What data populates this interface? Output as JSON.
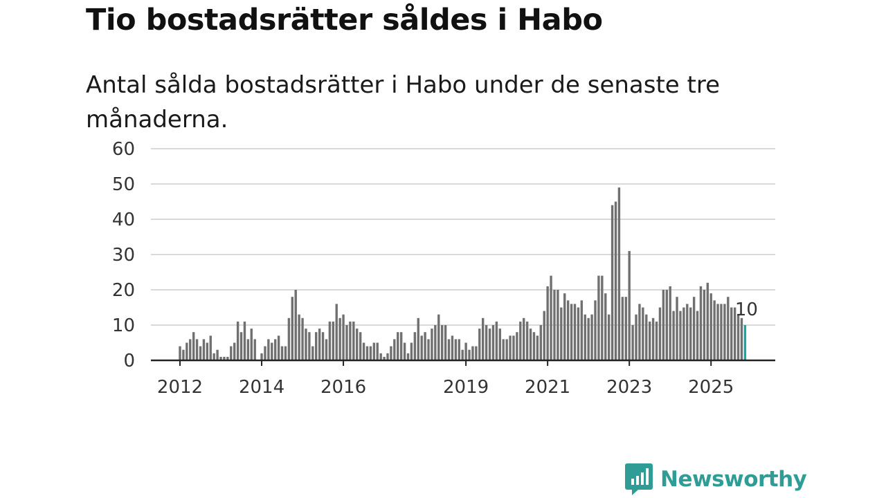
{
  "title": "Tio bostadsrätter såldes i Habo",
  "subtitle": "Antal sålda bostadsrätter i Habo under de senaste tre månaderna.",
  "brand": {
    "name": "Newsworthy",
    "icon": "newsworthy-logo-icon",
    "color": "#2f9c95"
  },
  "colors": {
    "bar": "#707070",
    "highlight": "#1fa5a0",
    "grid": "#d9d9d9",
    "axis": "#222222"
  },
  "chart_data": {
    "type": "bar",
    "title": "Tio bostadsrätter såldes i Habo",
    "xlabel": "",
    "ylabel": "",
    "ylim": [
      0,
      60
    ],
    "yticks": [
      0,
      10,
      20,
      30,
      40,
      50,
      60
    ],
    "xticks": [
      {
        "label": "2012",
        "index": 0
      },
      {
        "label": "2014",
        "index": 24
      },
      {
        "label": "2016",
        "index": 48
      },
      {
        "label": "2019",
        "index": 84
      },
      {
        "label": "2021",
        "index": 108
      },
      {
        "label": "2023",
        "index": 132
      },
      {
        "label": "2025",
        "index": 156
      }
    ],
    "start": "2012-01",
    "end": "2025-12",
    "values": [
      4,
      3,
      5,
      6,
      8,
      6,
      4,
      6,
      5,
      7,
      2,
      3,
      1,
      1,
      1,
      4,
      5,
      11,
      8,
      11,
      6,
      9,
      6,
      0,
      2,
      4,
      6,
      5,
      6,
      7,
      4,
      4,
      12,
      18,
      20,
      13,
      12,
      9,
      8,
      4,
      8,
      9,
      8,
      6,
      11,
      11,
      16,
      12,
      13,
      10,
      11,
      11,
      9,
      8,
      5,
      4,
      4,
      5,
      5,
      2,
      1,
      2,
      4,
      6,
      8,
      8,
      5,
      2,
      5,
      8,
      12,
      7,
      8,
      6,
      9,
      10,
      13,
      10,
      10,
      6,
      7,
      6,
      6,
      3,
      5,
      3,
      4,
      4,
      9,
      12,
      10,
      9,
      10,
      11,
      9,
      6,
      6,
      7,
      7,
      8,
      11,
      12,
      11,
      9,
      8,
      7,
      10,
      14,
      21,
      24,
      20,
      20,
      15,
      19,
      17,
      16,
      16,
      15,
      17,
      13,
      12,
      13,
      17,
      24,
      24,
      19,
      13,
      44,
      45,
      49,
      18,
      18,
      31,
      10,
      13,
      16,
      15,
      13,
      11,
      12,
      11,
      15,
      20,
      20,
      21,
      14,
      18,
      14,
      15,
      16,
      15,
      18,
      14,
      21,
      20,
      22,
      19,
      17,
      16,
      16,
      16,
      18,
      15,
      15,
      13,
      12,
      10
    ],
    "last_value_label": "10"
  }
}
